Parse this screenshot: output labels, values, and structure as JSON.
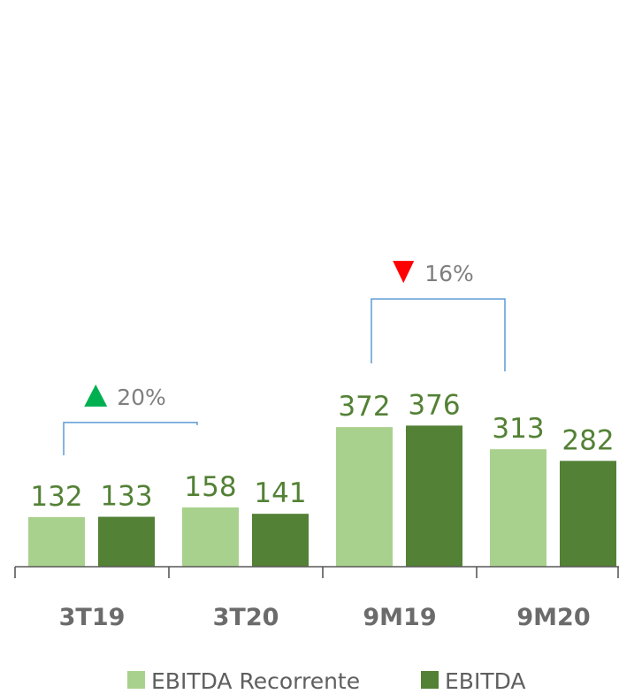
{
  "chart_data": {
    "type": "bar",
    "categories": [
      "3T19",
      "3T20",
      "9M19",
      "9M20"
    ],
    "series": [
      {
        "name": "EBITDA Recorrente",
        "values": [
          132,
          158,
          372,
          313
        ],
        "color": "#a9d18e"
      },
      {
        "name": "EBITDA",
        "values": [
          133,
          141,
          376,
          282
        ],
        "color": "#538135"
      }
    ],
    "ylim": [
      0,
      400
    ],
    "grid": false,
    "legend_position": "bottom",
    "annotations": [
      {
        "from": "3T19",
        "to": "3T20",
        "label": "20%",
        "direction": "up",
        "arrow_color": "#00b050"
      },
      {
        "from": "9M19",
        "to": "9M20",
        "label": "16%",
        "direction": "down",
        "arrow_color": "#ff0000"
      }
    ],
    "bracket_color": "#5b9bd5",
    "axis_color": "#595959",
    "label_color": "#538135"
  }
}
